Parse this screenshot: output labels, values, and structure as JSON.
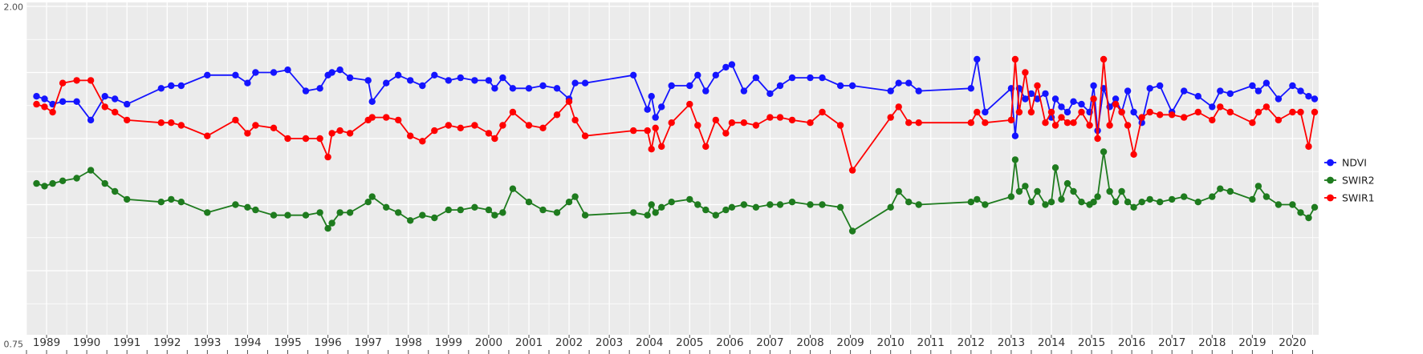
{
  "figure": {
    "background": "#FFFFFF",
    "panel_background": "#EBEBEB",
    "grid_major_color": "#FFFFFF",
    "grid_minor_color": "#FFFFFF",
    "axis_text_color": "#333333",
    "tick_color": "#4D4D4D"
  },
  "y_axis": {
    "visible_tick_labels": [
      {
        "label": "2.00",
        "value": 2.0
      },
      {
        "label": "0.75",
        "value": 0.75
      }
    ],
    "major_break_step": 0.25,
    "minor_break_step": 0.125
  },
  "x_axis": {
    "tick_labels": [
      "1989",
      "1990",
      "1991",
      "1992",
      "1993",
      "1994",
      "1995",
      "1996",
      "1997",
      "1998",
      "1999",
      "2000",
      "2001",
      "2002",
      "2003",
      "2004",
      "2005",
      "2006",
      "2007",
      "2008",
      "2009",
      "2010",
      "2011",
      "2012",
      "2013",
      "2014",
      "2015",
      "2016",
      "2017",
      "2018",
      "2019",
      "2020"
    ]
  },
  "legend": {
    "items": [
      {
        "label": "NDVI",
        "color": "#1414FF"
      },
      {
        "label": "SWIR2",
        "color": "#1E7B1E"
      },
      {
        "label": "SWIR1",
        "color": "#FF0000"
      }
    ]
  },
  "chart_data": {
    "type": "line",
    "title": "",
    "xlabel": "",
    "ylabel": "",
    "xlim": [
      1988.5,
      2020.65
    ],
    "ylim": [
      0.75,
      2.0
    ],
    "grid": "major+minor",
    "markers": true,
    "legend_position": "right",
    "y_tick_labels_visible": [
      "2.00",
      "0.75"
    ],
    "x_tick_values": [
      1989,
      1990,
      1991,
      1992,
      1993,
      1994,
      1995,
      1996,
      1997,
      1998,
      1999,
      2000,
      2001,
      2002,
      2003,
      2004,
      2005,
      2006,
      2007,
      2008,
      2009,
      2010,
      2011,
      2012,
      2013,
      2014,
      2015,
      2016,
      2017,
      2018,
      2019,
      2020
    ],
    "x": [
      1988.75,
      1988.95,
      1989.15,
      1989.4,
      1989.75,
      1990.1,
      1990.45,
      1990.7,
      1991.0,
      1991.85,
      1992.1,
      1992.35,
      1993.0,
      1993.7,
      1994.0,
      1994.2,
      1994.65,
      1995.0,
      1995.45,
      1995.8,
      1996.0,
      1996.1,
      1996.3,
      1996.55,
      1997.0,
      1997.1,
      1997.45,
      1997.75,
      1998.05,
      1998.35,
      1998.65,
      1999.0,
      1999.3,
      1999.65,
      2000.0,
      2000.15,
      2000.35,
      2000.6,
      2001.0,
      2001.35,
      2001.7,
      2002.0,
      2002.15,
      2002.4,
      2003.6,
      2003.95,
      2004.05,
      2004.15,
      2004.3,
      2004.55,
      2005.0,
      2005.2,
      2005.4,
      2005.65,
      2005.9,
      2006.05,
      2006.35,
      2006.65,
      2007.0,
      2007.25,
      2007.55,
      2008.0,
      2008.3,
      2008.75,
      2009.05,
      2010.0,
      2010.2,
      2010.45,
      2010.7,
      2012.0,
      2012.15,
      2012.35,
      2013.0,
      2013.1,
      2013.2,
      2013.35,
      2013.5,
      2013.65,
      2013.85,
      2014.0,
      2014.1,
      2014.25,
      2014.4,
      2014.55,
      2014.75,
      2014.95,
      2015.05,
      2015.15,
      2015.3,
      2015.45,
      2015.6,
      2015.75,
      2015.9,
      2016.05,
      2016.25,
      2016.45,
      2016.7,
      2017.0,
      2017.3,
      2017.65,
      2018.0,
      2018.2,
      2018.45,
      2019.0,
      2019.15,
      2019.35,
      2019.65,
      2020.0,
      2020.2,
      2020.4,
      2020.55
    ],
    "series": [
      {
        "name": "NDVI",
        "color": "#1414FF",
        "values": [
          1.66,
          1.65,
          1.63,
          1.64,
          1.64,
          1.57,
          1.66,
          1.65,
          1.63,
          1.69,
          1.7,
          1.7,
          1.74,
          1.74,
          1.71,
          1.75,
          1.75,
          1.76,
          1.68,
          1.69,
          1.74,
          1.75,
          1.76,
          1.73,
          1.72,
          1.64,
          1.71,
          1.74,
          1.72,
          1.7,
          1.74,
          1.72,
          1.73,
          1.72,
          1.72,
          1.69,
          1.73,
          1.69,
          1.69,
          1.7,
          1.69,
          1.65,
          1.71,
          1.71,
          1.74,
          1.61,
          1.66,
          1.58,
          1.62,
          1.7,
          1.7,
          1.74,
          1.68,
          1.74,
          1.77,
          1.78,
          1.68,
          1.73,
          1.67,
          1.7,
          1.73,
          1.73,
          1.73,
          1.7,
          1.7,
          1.68,
          1.71,
          1.71,
          1.68,
          1.69,
          1.8,
          1.6,
          1.69,
          1.51,
          1.69,
          1.65,
          1.67,
          1.65,
          1.67,
          1.58,
          1.65,
          1.62,
          1.6,
          1.64,
          1.63,
          1.6,
          1.7,
          1.53,
          1.69,
          1.62,
          1.65,
          1.6,
          1.68,
          1.6,
          1.56,
          1.69,
          1.7,
          1.6,
          1.68,
          1.66,
          1.62,
          1.68,
          1.67,
          1.7,
          1.68,
          1.71,
          1.65,
          1.7,
          1.68,
          1.66,
          1.65
        ]
      },
      {
        "name": "SWIR2",
        "color": "#1E7B1E",
        "values": [
          1.33,
          1.32,
          1.33,
          1.34,
          1.35,
          1.38,
          1.33,
          1.3,
          1.27,
          1.26,
          1.27,
          1.26,
          1.22,
          1.25,
          1.24,
          1.23,
          1.21,
          1.21,
          1.21,
          1.22,
          1.16,
          1.18,
          1.22,
          1.22,
          1.26,
          1.28,
          1.24,
          1.22,
          1.19,
          1.21,
          1.2,
          1.23,
          1.23,
          1.24,
          1.23,
          1.21,
          1.22,
          1.31,
          1.26,
          1.23,
          1.22,
          1.26,
          1.28,
          1.21,
          1.22,
          1.21,
          1.25,
          1.22,
          1.24,
          1.26,
          1.27,
          1.25,
          1.23,
          1.21,
          1.23,
          1.24,
          1.25,
          1.24,
          1.25,
          1.25,
          1.26,
          1.25,
          1.25,
          1.24,
          1.15,
          1.24,
          1.3,
          1.26,
          1.25,
          1.26,
          1.27,
          1.25,
          1.28,
          1.42,
          1.3,
          1.32,
          1.26,
          1.3,
          1.25,
          1.26,
          1.39,
          1.27,
          1.33,
          1.3,
          1.26,
          1.25,
          1.26,
          1.28,
          1.45,
          1.3,
          1.26,
          1.3,
          1.26,
          1.24,
          1.26,
          1.27,
          1.26,
          1.27,
          1.28,
          1.26,
          1.28,
          1.31,
          1.3,
          1.27,
          1.32,
          1.28,
          1.25,
          1.25,
          1.22,
          1.2,
          1.24
        ]
      },
      {
        "name": "SWIR1",
        "color": "#FF0000",
        "values": [
          1.63,
          1.62,
          1.6,
          1.71,
          1.72,
          1.72,
          1.62,
          1.6,
          1.57,
          1.56,
          1.56,
          1.55,
          1.51,
          1.57,
          1.52,
          1.55,
          1.54,
          1.5,
          1.5,
          1.5,
          1.43,
          1.52,
          1.53,
          1.52,
          1.57,
          1.58,
          1.58,
          1.57,
          1.51,
          1.49,
          1.53,
          1.55,
          1.54,
          1.55,
          1.52,
          1.5,
          1.55,
          1.6,
          1.55,
          1.54,
          1.59,
          1.64,
          1.57,
          1.51,
          1.53,
          1.53,
          1.46,
          1.54,
          1.47,
          1.56,
          1.63,
          1.55,
          1.47,
          1.57,
          1.52,
          1.56,
          1.56,
          1.55,
          1.58,
          1.58,
          1.57,
          1.56,
          1.6,
          1.55,
          1.38,
          1.58,
          1.62,
          1.56,
          1.56,
          1.56,
          1.6,
          1.56,
          1.57,
          1.8,
          1.6,
          1.75,
          1.6,
          1.7,
          1.56,
          1.6,
          1.55,
          1.58,
          1.56,
          1.56,
          1.6,
          1.55,
          1.65,
          1.5,
          1.8,
          1.55,
          1.63,
          1.6,
          1.55,
          1.44,
          1.58,
          1.6,
          1.59,
          1.59,
          1.58,
          1.6,
          1.57,
          1.62,
          1.6,
          1.56,
          1.6,
          1.62,
          1.57,
          1.6,
          1.6,
          1.47,
          1.6
        ]
      }
    ]
  }
}
